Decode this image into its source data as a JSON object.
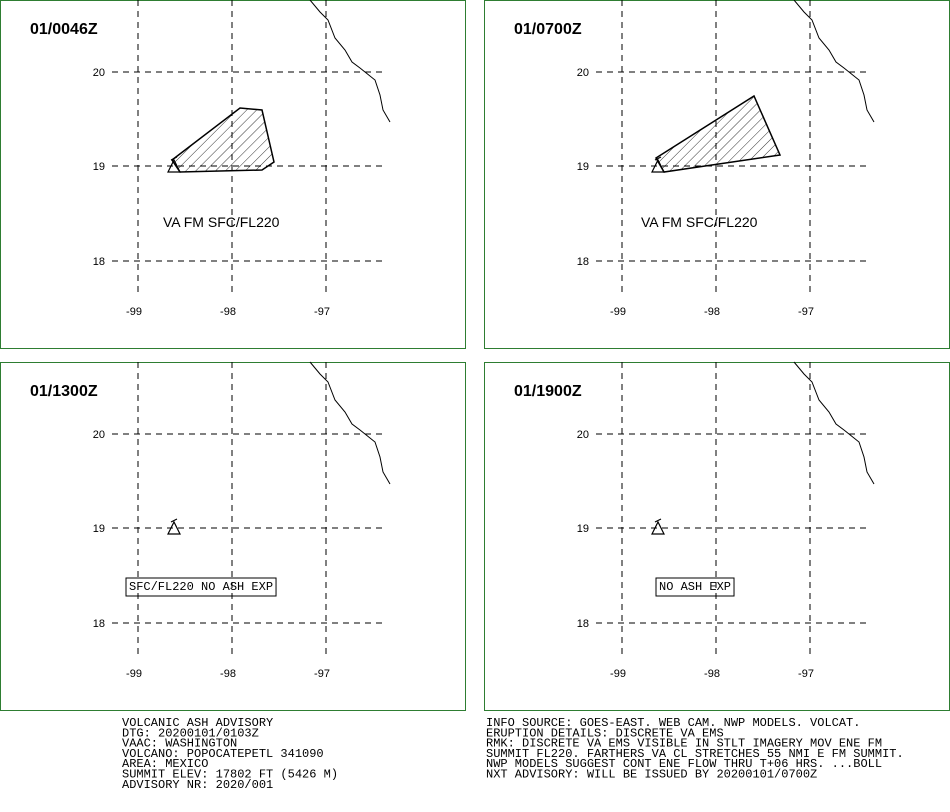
{
  "panels": [
    {
      "time": "01/0046Z",
      "label": "VA FM SFC/FL220"
    },
    {
      "time": "01/0700Z",
      "label": "VA FM SFC/FL220"
    },
    {
      "time": "01/1300Z",
      "label": "SFC/FL220 NO ASH EXP"
    },
    {
      "time": "01/1900Z",
      "label": "NO ASH EXP"
    }
  ],
  "lat_labels": [
    20,
    19,
    18
  ],
  "lon_labels": [
    -99,
    -98,
    -97
  ],
  "advisory_left": [
    "VOLCANIC ASH ADVISORY",
    "DTG: 20200101/0103Z",
    "VAAC: WASHINGTON",
    "VOLCANO: POPOCATEPETL 341090",
    "AREA: MEXICO",
    "SUMMIT ELEV: 17802 FT (5426 M)",
    "ADVISORY NR: 2020/001"
  ],
  "advisory_right": [
    "INFO SOURCE: GOES-EAST. WEB CAM. NWP MODELS. VOLCAT.",
    "ERUPTION DETAILS: DISCRETE VA EMS",
    "RMK: DISCRETE VA EMS VISIBLE IN STLT IMAGERY MOV ENE FM",
    "SUMMIT FL220. FARTHERS VA CL STRETCHES 55 NMI E FM SUMMIT.",
    "NWP MODELS SUGGEST CONT ENE FLOW THRU T+06 HRS. ...BOLL",
    "NXT ADVISORY: WILL BE ISSUED BY 20200101/0700Z"
  ]
}
